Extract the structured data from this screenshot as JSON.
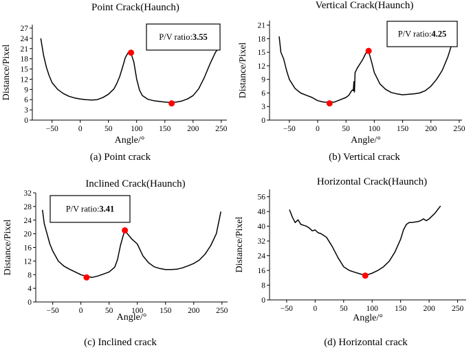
{
  "chart_data": [
    {
      "type": "line",
      "title": "Point Crack(Haunch)",
      "xlabel": "Angle/°",
      "ylabel": "Distance/Pixel",
      "caption": "(a) Point crack",
      "ratio_label": "P/V ratio:",
      "ratio_value": "3.55",
      "xlim": [
        -85,
        260
      ],
      "ylim": [
        0,
        28
      ],
      "xticks": [
        -50,
        0,
        50,
        100,
        150,
        200,
        250
      ],
      "yticks": [
        0,
        3,
        6,
        9,
        12,
        15,
        18,
        21,
        24,
        27
      ],
      "x": [
        -70,
        -65,
        -60,
        -55,
        -50,
        -40,
        -30,
        -20,
        -10,
        0,
        10,
        20,
        30,
        40,
        50,
        60,
        65,
        70,
        75,
        80,
        85,
        90,
        95,
        100,
        105,
        110,
        120,
        130,
        140,
        150,
        160,
        170,
        180,
        190,
        200,
        210,
        220,
        230,
        240,
        245
      ],
      "y": [
        24,
        19,
        15.5,
        13,
        11,
        9,
        7.8,
        7,
        6.5,
        6.2,
        6,
        5.9,
        6,
        6.6,
        7.6,
        9.2,
        10.8,
        12.8,
        15.5,
        18.4,
        19.8,
        19.6,
        17,
        12,
        8.8,
        7.2,
        6.1,
        5.7,
        5.5,
        5.3,
        5.2,
        5.3,
        5.6,
        6.2,
        7.2,
        9.2,
        12.5,
        16.5,
        20,
        21
      ],
      "peak": [
        90,
        19.8
      ],
      "valley": [
        162,
        4.9
      ]
    },
    {
      "type": "line",
      "title": "Vertical Crack(Haunch)",
      "xlabel": "Angle/°",
      "ylabel": "Distance/Pixel",
      "caption": "(b) Vertical crack",
      "ratio_label": "P/V ratio:",
      "ratio_value": "4.25",
      "xlim": [
        -85,
        255
      ],
      "ylim": [
        0,
        22
      ],
      "xticks": [
        -50,
        0,
        50,
        100,
        150,
        200,
        250
      ],
      "yticks": [
        0,
        3,
        6,
        9,
        12,
        15,
        18,
        21
      ],
      "x": [
        -68,
        -65,
        -60,
        -55,
        -50,
        -40,
        -30,
        -20,
        -10,
        0,
        10,
        20,
        30,
        40,
        50,
        55,
        60,
        62,
        63,
        64,
        65,
        66,
        70,
        75,
        80,
        85,
        90,
        95,
        100,
        110,
        120,
        130,
        140,
        150,
        160,
        170,
        180,
        190,
        200,
        210,
        220,
        230,
        240
      ],
      "y": [
        18.5,
        15,
        13.5,
        11,
        9,
        7,
        6,
        5.5,
        5,
        4.3,
        4,
        3.9,
        4,
        4.5,
        5,
        5.5,
        6.5,
        6.7,
        6.5,
        8.5,
        6.2,
        10.5,
        11.5,
        12.5,
        13.5,
        14.8,
        15.2,
        13,
        10.5,
        8,
        6.8,
        6.1,
        5.8,
        5.6,
        5.7,
        5.8,
        6,
        6.5,
        7.5,
        9,
        11,
        14,
        18
      ],
      "peak": [
        90,
        15.3
      ],
      "valley": [
        21,
        3.7
      ]
    },
    {
      "type": "line",
      "title": "Inclined Crack(Haunch)",
      "xlabel": "Angle/°",
      "ylabel": "Distance/Pixel",
      "caption": "(c) Inclined crack",
      "ratio_label": "P/V ratio:",
      "ratio_value": "3.41",
      "xlim": [
        -80,
        260
      ],
      "ylim": [
        0,
        32
      ],
      "xticks": [
        -50,
        0,
        50,
        100,
        150,
        200,
        250
      ],
      "yticks": [
        0,
        4,
        8,
        12,
        16,
        20,
        24,
        28,
        32
      ],
      "x": [
        -68,
        -65,
        -60,
        -55,
        -50,
        -40,
        -30,
        -20,
        -10,
        0,
        10,
        20,
        30,
        40,
        50,
        60,
        65,
        70,
        75,
        78,
        80,
        85,
        90,
        100,
        110,
        120,
        130,
        140,
        150,
        160,
        170,
        180,
        190,
        200,
        210,
        220,
        230,
        240,
        245,
        248
      ],
      "y": [
        27,
        23,
        20,
        17,
        15,
        12,
        10.5,
        9.6,
        8.8,
        8,
        7.5,
        7.2,
        7.6,
        8.2,
        8.8,
        10.2,
        12.5,
        16.5,
        19.5,
        21,
        20.5,
        19.5,
        18.5,
        17,
        13.5,
        11.5,
        10.3,
        9.8,
        9.5,
        9.5,
        9.6,
        10,
        10.6,
        11.3,
        12.3,
        14,
        16.5,
        20,
        24,
        26.5
      ],
      "peak": [
        78,
        21
      ],
      "valley": [
        10,
        7.2
      ]
    },
    {
      "type": "line",
      "title": "Horizontal Crack(Haunch)",
      "xlabel": "Angle/°",
      "ylabel": "Distance/Pixel",
      "caption": "(d) Horizontal crack",
      "xlim": [
        -80,
        265
      ],
      "ylim": [
        0,
        60
      ],
      "xticks": [
        -50,
        0,
        50,
        100,
        150,
        200,
        250
      ],
      "yticks": [
        0,
        8,
        16,
        24,
        32,
        40,
        48,
        56
      ],
      "x": [
        -45,
        -40,
        -35,
        -30,
        -25,
        -20,
        -15,
        -10,
        -5,
        0,
        5,
        10,
        20,
        30,
        40,
        50,
        60,
        70,
        80,
        90,
        100,
        110,
        120,
        130,
        140,
        150,
        155,
        160,
        165,
        170,
        175,
        180,
        185,
        190,
        195,
        200,
        210,
        220
      ],
      "y": [
        49,
        45,
        42,
        43.5,
        41,
        40.5,
        40,
        39,
        37.5,
        38,
        36.5,
        36,
        34,
        29,
        23,
        18,
        16,
        15,
        14,
        13.5,
        14.5,
        16,
        18,
        21,
        26,
        33,
        38,
        41,
        42,
        42,
        42.3,
        42.5,
        43,
        44,
        43,
        44,
        47,
        51
      ],
      "valley": [
        88,
        13.2
      ]
    }
  ]
}
